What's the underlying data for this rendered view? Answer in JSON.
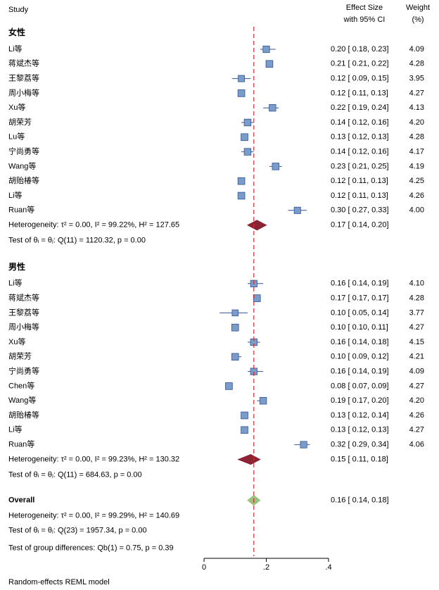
{
  "chart_data": {
    "type": "forest",
    "headers": {
      "study": "Study",
      "effect": [
        "Effect Size",
        "with 95% CI"
      ],
      "weight": [
        "Weight",
        "(%)"
      ]
    },
    "xlim": [
      0,
      0.4
    ],
    "xticks": [
      0,
      {
        "value": 0.2,
        "label": ".2"
      },
      {
        "value": 0.4,
        "label": ".4"
      }
    ],
    "ref_line": 0.16,
    "ref_color": "#d62728",
    "marker_color": "#7b9bc9",
    "ci_color": "#2f5597",
    "summary_color": "#8b2335",
    "overall_color": "#9cc17e",
    "groups": [
      {
        "label": "女性",
        "studies": [
          {
            "name": "Li等",
            "es": 0.2,
            "lo": 0.18,
            "hi": 0.23,
            "label": "0.20 [ 0.18, 0.23]",
            "weight": 4.09
          },
          {
            "name": "蒋斌杰等",
            "es": 0.21,
            "lo": 0.21,
            "hi": 0.22,
            "label": "0.21 [ 0.21, 0.22]",
            "weight": 4.28
          },
          {
            "name": "王黎荔等",
            "es": 0.12,
            "lo": 0.09,
            "hi": 0.15,
            "label": "0.12 [ 0.09, 0.15]",
            "weight": 3.95
          },
          {
            "name": "周小梅等",
            "es": 0.12,
            "lo": 0.11,
            "hi": 0.13,
            "label": "0.12 [ 0.11, 0.13]",
            "weight": 4.27
          },
          {
            "name": "Xu等",
            "es": 0.22,
            "lo": 0.19,
            "hi": 0.24,
            "label": "0.22 [ 0.19, 0.24]",
            "weight": 4.13
          },
          {
            "name": "胡荣芳",
            "es": 0.14,
            "lo": 0.12,
            "hi": 0.16,
            "label": "0.14 [ 0.12, 0.16]",
            "weight": 4.2,
            "weight_label": "4.20"
          },
          {
            "name": "Lu等",
            "es": 0.13,
            "lo": 0.12,
            "hi": 0.13,
            "label": "0.13 [ 0.12, 0.13]",
            "weight": 4.28
          },
          {
            "name": "宁尚勇等",
            "es": 0.14,
            "lo": 0.12,
            "hi": 0.16,
            "label": "0.14 [ 0.12, 0.16]",
            "weight": 4.17
          },
          {
            "name": "Wang等",
            "es": 0.23,
            "lo": 0.21,
            "hi": 0.25,
            "label": "0.23 [ 0.21, 0.25]",
            "weight": 4.19
          },
          {
            "name": "胡贻椿等",
            "es": 0.12,
            "lo": 0.11,
            "hi": 0.13,
            "label": "0.12 [ 0.11, 0.13]",
            "weight": 4.25
          },
          {
            "name": "Li等",
            "es": 0.12,
            "lo": 0.11,
            "hi": 0.13,
            "label": "0.12 [ 0.11, 0.13]",
            "weight": 4.26
          },
          {
            "name": "Ruan等",
            "es": 0.3,
            "lo": 0.27,
            "hi": 0.33,
            "label": "0.30 [ 0.27, 0.33]",
            "weight": 4.0,
            "weight_label": "4.00"
          }
        ],
        "summary": {
          "es": 0.17,
          "lo": 0.14,
          "hi": 0.2,
          "label": "0.17 [ 0.14, 0.20]"
        },
        "heterogeneity": "Heterogeneity: τ² = 0.00, I² = 99.22%, H² = 127.65",
        "test": "Test of θᵢ = θⱼ: Q(11) = 1120.32, p = 0.00"
      },
      {
        "label": "男性",
        "studies": [
          {
            "name": "Li等",
            "es": 0.16,
            "lo": 0.14,
            "hi": 0.19,
            "label": "0.16 [ 0.14, 0.19]",
            "weight": 4.1,
            "weight_label": "4.10"
          },
          {
            "name": "蒋斌杰等",
            "es": 0.17,
            "lo": 0.17,
            "hi": 0.17,
            "label": "0.17 [ 0.17, 0.17]",
            "weight": 4.28
          },
          {
            "name": "王黎荔等",
            "es": 0.1,
            "lo": 0.05,
            "hi": 0.14,
            "label": "0.10 [ 0.05, 0.14]",
            "weight": 3.77
          },
          {
            "name": "周小梅等",
            "es": 0.1,
            "lo": 0.1,
            "hi": 0.11,
            "label": "0.10 [ 0.10, 0.11]",
            "weight": 4.27
          },
          {
            "name": "Xu等",
            "es": 0.16,
            "lo": 0.14,
            "hi": 0.18,
            "label": "0.16 [ 0.14, 0.18]",
            "weight": 4.15
          },
          {
            "name": "胡荣芳",
            "es": 0.1,
            "lo": 0.09,
            "hi": 0.12,
            "label": "0.10 [ 0.09, 0.12]",
            "weight": 4.21
          },
          {
            "name": "宁尚勇等",
            "es": 0.16,
            "lo": 0.14,
            "hi": 0.19,
            "label": "0.16 [ 0.14, 0.19]",
            "weight": 4.09
          },
          {
            "name": "Chen等",
            "es": 0.08,
            "lo": 0.07,
            "hi": 0.09,
            "label": "0.08 [ 0.07, 0.09]",
            "weight": 4.27
          },
          {
            "name": "Wang等",
            "es": 0.19,
            "lo": 0.17,
            "hi": 0.2,
            "label": "0.19 [ 0.17, 0.20]",
            "weight": 4.2,
            "weight_label": "4.20"
          },
          {
            "name": "胡贻椿等",
            "es": 0.13,
            "lo": 0.12,
            "hi": 0.14,
            "label": "0.13 [ 0.12, 0.14]",
            "weight": 4.26
          },
          {
            "name": "Li等",
            "es": 0.13,
            "lo": 0.12,
            "hi": 0.13,
            "label": "0.13 [ 0.12, 0.13]",
            "weight": 4.27
          },
          {
            "name": "Ruan等",
            "es": 0.32,
            "lo": 0.29,
            "hi": 0.34,
            "label": "0.32 [ 0.29, 0.34]",
            "weight": 4.06
          }
        ],
        "summary": {
          "es": 0.15,
          "lo": 0.11,
          "hi": 0.18,
          "label": "0.15 [ 0.11, 0.18]"
        },
        "heterogeneity": "Heterogeneity: τ² = 0.00, I² = 99.23%, H² = 130.32",
        "test": "Test of θᵢ = θⱼ: Q(11) = 684.63, p = 0.00"
      }
    ],
    "overall": {
      "label": "Overall",
      "es": 0.16,
      "lo": 0.14,
      "hi": 0.18,
      "value_label": "0.16 [ 0.14, 0.18]",
      "heterogeneity": "Heterogeneity: τ² = 0.00, I² = 99.29%, H² = 140.69",
      "test": "Test of θᵢ = θⱼ: Q(23) = 1957.34, p = 0.00"
    },
    "group_test": "Test of group differences: Qb(1) = 0.75, p = 0.39",
    "note": "Random-effects REML model"
  }
}
